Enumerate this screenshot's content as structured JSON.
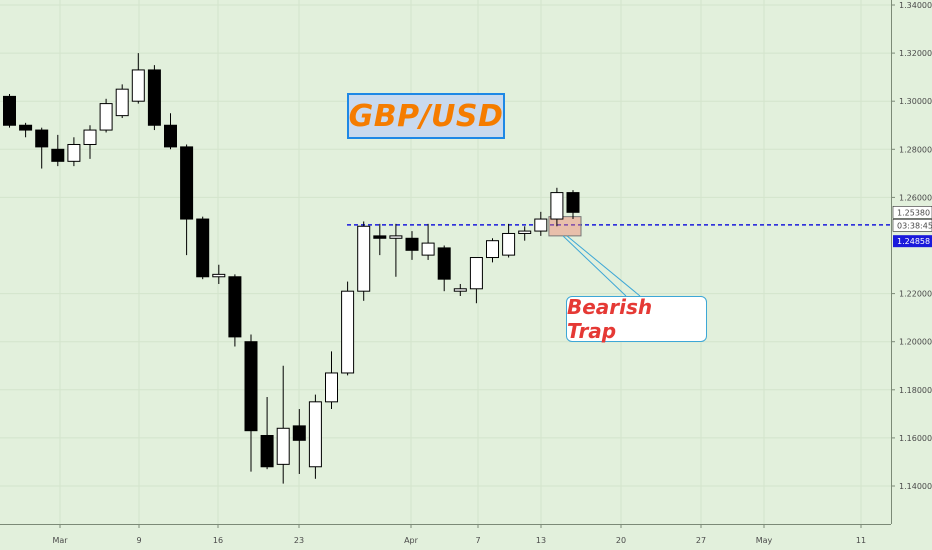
{
  "chart_data": {
    "type": "candlestick",
    "title": "GBP/USD",
    "annotation": "Bearish Trap",
    "ylim": [
      1.125,
      1.345
    ],
    "y_ticks": [
      1.14,
      1.16,
      1.18,
      1.2,
      1.22,
      1.26,
      1.28,
      1.3,
      1.32,
      1.34
    ],
    "y_tick_labels": [
      "1.14000",
      "1.16000",
      "1.18000",
      "1.20000",
      "1.22000",
      "1.26000",
      "1.28000",
      "1.30000",
      "1.32000",
      "1.34000"
    ],
    "x_tick_labels": [
      "Mar",
      "9",
      "16",
      "23",
      "Apr",
      "7",
      "13",
      "20",
      "27",
      "May",
      "11"
    ],
    "price_badges": {
      "current_price": "1.25380",
      "countdown": "03:38:45",
      "level_price": "1.24858"
    },
    "horizontal_level": 1.24858,
    "candles": [
      {
        "o": 1.302,
        "h": 1.303,
        "l": 1.289,
        "c": 1.29
      },
      {
        "o": 1.29,
        "h": 1.291,
        "l": 1.285,
        "c": 1.288
      },
      {
        "o": 1.288,
        "h": 1.289,
        "l": 1.272,
        "c": 1.281
      },
      {
        "o": 1.28,
        "h": 1.286,
        "l": 1.273,
        "c": 1.275
      },
      {
        "o": 1.275,
        "h": 1.285,
        "l": 1.273,
        "c": 1.282
      },
      {
        "o": 1.282,
        "h": 1.29,
        "l": 1.276,
        "c": 1.288
      },
      {
        "o": 1.288,
        "h": 1.301,
        "l": 1.287,
        "c": 1.299
      },
      {
        "o": 1.294,
        "h": 1.307,
        "l": 1.293,
        "c": 1.305
      },
      {
        "o": 1.3,
        "h": 1.32,
        "l": 1.299,
        "c": 1.313
      },
      {
        "o": 1.313,
        "h": 1.315,
        "l": 1.288,
        "c": 1.29
      },
      {
        "o": 1.29,
        "h": 1.295,
        "l": 1.28,
        "c": 1.281
      },
      {
        "o": 1.281,
        "h": 1.282,
        "l": 1.236,
        "c": 1.251
      },
      {
        "o": 1.251,
        "h": 1.252,
        "l": 1.226,
        "c": 1.227
      },
      {
        "o": 1.227,
        "h": 1.232,
        "l": 1.224,
        "c": 1.228
      },
      {
        "o": 1.227,
        "h": 1.228,
        "l": 1.198,
        "c": 1.202
      },
      {
        "o": 1.2,
        "h": 1.203,
        "l": 1.146,
        "c": 1.163
      },
      {
        "o": 1.161,
        "h": 1.177,
        "l": 1.147,
        "c": 1.148
      },
      {
        "o": 1.149,
        "h": 1.19,
        "l": 1.141,
        "c": 1.164
      },
      {
        "o": 1.165,
        "h": 1.172,
        "l": 1.145,
        "c": 1.159
      },
      {
        "o": 1.148,
        "h": 1.178,
        "l": 1.143,
        "c": 1.175
      },
      {
        "o": 1.175,
        "h": 1.196,
        "l": 1.172,
        "c": 1.187
      },
      {
        "o": 1.187,
        "h": 1.225,
        "l": 1.186,
        "c": 1.221
      },
      {
        "o": 1.221,
        "h": 1.25,
        "l": 1.217,
        "c": 1.248
      },
      {
        "o": 1.244,
        "h": 1.249,
        "l": 1.236,
        "c": 1.243
      },
      {
        "o": 1.243,
        "h": 1.249,
        "l": 1.227,
        "c": 1.244
      },
      {
        "o": 1.243,
        "h": 1.246,
        "l": 1.234,
        "c": 1.238
      },
      {
        "o": 1.236,
        "h": 1.249,
        "l": 1.234,
        "c": 1.241
      },
      {
        "o": 1.239,
        "h": 1.24,
        "l": 1.221,
        "c": 1.226
      },
      {
        "o": 1.221,
        "h": 1.224,
        "l": 1.219,
        "c": 1.222
      },
      {
        "o": 1.222,
        "h": 1.235,
        "l": 1.216,
        "c": 1.235
      },
      {
        "o": 1.235,
        "h": 1.243,
        "l": 1.233,
        "c": 1.242
      },
      {
        "o": 1.236,
        "h": 1.249,
        "l": 1.235,
        "c": 1.245
      },
      {
        "o": 1.245,
        "h": 1.248,
        "l": 1.242,
        "c": 1.246
      },
      {
        "o": 1.246,
        "h": 1.254,
        "l": 1.244,
        "c": 1.251
      },
      {
        "o": 1.251,
        "h": 1.264,
        "l": 1.248,
        "c": 1.262
      },
      {
        "o": 1.262,
        "h": 1.263,
        "l": 1.251,
        "c": 1.2538
      }
    ]
  }
}
